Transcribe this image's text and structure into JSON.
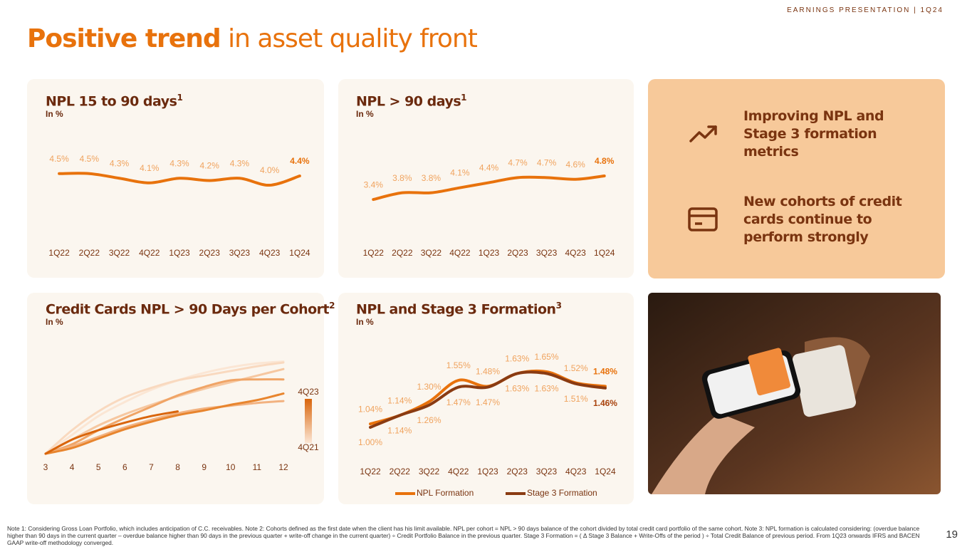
{
  "header": "EARNINGS PRESENTATION | 1Q24",
  "title": {
    "highlight": "Positive trend",
    "rest": "in asset quality front"
  },
  "chart_data": [
    {
      "type": "line",
      "title": "NPL 15 to 90 days",
      "note_ref": "1",
      "subtitle": "In %",
      "categories": [
        "1Q22",
        "2Q22",
        "3Q22",
        "4Q22",
        "1Q23",
        "2Q23",
        "3Q23",
        "4Q23",
        "1Q24"
      ],
      "values": [
        4.5,
        4.5,
        4.3,
        4.1,
        4.3,
        4.2,
        4.3,
        4.0,
        4.4
      ],
      "value_labels": [
        "4.5%",
        "4.5%",
        "4.3%",
        "4.1%",
        "4.3%",
        "4.2%",
        "4.3%",
        "4.0%",
        "4.4%"
      ],
      "color": "#e8720c",
      "ylim": [
        2,
        6
      ]
    },
    {
      "type": "line",
      "title": "NPL > 90 days",
      "note_ref": "1",
      "subtitle": "In %",
      "categories": [
        "1Q22",
        "2Q22",
        "3Q22",
        "4Q22",
        "1Q23",
        "2Q23",
        "3Q23",
        "4Q23",
        "1Q24"
      ],
      "values": [
        3.4,
        3.8,
        3.8,
        4.1,
        4.4,
        4.7,
        4.7,
        4.6,
        4.8
      ],
      "value_labels": [
        "3.4%",
        "3.8%",
        "3.8%",
        "4.1%",
        "4.4%",
        "4.7%",
        "4.7%",
        "4.6%",
        "4.8%"
      ],
      "color": "#e8720c",
      "ylim": [
        1.5,
        7
      ]
    },
    {
      "type": "line",
      "title": "Credit Cards NPL > 90 Days per Cohort",
      "note_ref": "2",
      "subtitle": "In %",
      "x": [
        3,
        4,
        5,
        6,
        7,
        8,
        9,
        10,
        11,
        12
      ],
      "xlim": [
        3,
        12
      ],
      "xticks": [
        3,
        4,
        5,
        6,
        7,
        8,
        9,
        10,
        11,
        12
      ],
      "ylim": [
        0,
        10
      ],
      "legend_labels": [
        "4Q23",
        "4Q21"
      ],
      "series": [
        {
          "color": "#fbe6d4",
          "values": [
            0,
            2,
            4,
            5.5,
            6.8,
            7.8,
            8.6,
            9.2,
            9.6,
            9.8
          ]
        },
        {
          "color": "#f9d9bf",
          "values": [
            0,
            2.5,
            4.5,
            6,
            7,
            7.8,
            8.3,
            8.8,
            9.3,
            9.7
          ]
        },
        {
          "color": "#f6c7a0",
          "values": [
            0,
            1.5,
            3,
            4.2,
            5.2,
            6.1,
            6.9,
            7.6,
            8.3,
            9
          ]
        },
        {
          "color": "#f0a466",
          "values": [
            0,
            1,
            2.5,
            3.8,
            5,
            6.2,
            7.1,
            7.8,
            7.9,
            7.9
          ]
        },
        {
          "color": "#f2b280",
          "values": [
            0,
            0.8,
            1.8,
            2.8,
            3.6,
            4.3,
            4.8,
            5.1,
            5.4,
            5.6
          ]
        },
        {
          "color": "#e8852e",
          "values": [
            0,
            0.6,
            1.6,
            2.6,
            3.4,
            4.1,
            4.6,
            5.2,
            5.7,
            6.4
          ]
        },
        {
          "color": "#d9650c",
          "values": [
            0,
            1.5,
            2.5,
            3.3,
            4,
            4.5,
            null,
            null,
            null,
            null
          ]
        }
      ]
    },
    {
      "type": "line",
      "title": "NPL and Stage 3 Formation",
      "note_ref": "3",
      "subtitle": "In %",
      "categories": [
        "1Q22",
        "2Q22",
        "3Q22",
        "4Q22",
        "1Q23",
        "2Q23",
        "3Q23",
        "4Q23",
        "1Q24"
      ],
      "ylim": [
        0.75,
        2.0
      ],
      "series": [
        {
          "name": "NPL Formation",
          "color": "#e8720c",
          "values": [
            1.04,
            1.14,
            1.3,
            1.55,
            1.48,
            1.63,
            1.65,
            1.52,
            1.48
          ],
          "value_labels": [
            "1.04%",
            "1.14%",
            "1.30%",
            "1.55%",
            "1.48%",
            "1.63%",
            "1.65%",
            "1.52%",
            "1.48%"
          ]
        },
        {
          "name": "Stage 3 Formation",
          "color": "#8a3b12",
          "values": [
            1.0,
            1.14,
            1.26,
            1.47,
            1.47,
            1.63,
            1.63,
            1.51,
            1.46
          ],
          "value_labels": [
            "1.00%",
            "1.14%",
            "1.26%",
            "1.47%",
            "1.47%",
            "1.63%",
            "1.63%",
            "1.51%",
            "1.46%"
          ]
        }
      ]
    }
  ],
  "highlights": [
    "Improving NPL and Stage 3 formation metrics",
    "New cohorts of credit cards continue to perform strongly"
  ],
  "note": "Note 1: Considering Gross Loan Portfolio, which includes anticipation of C.C. receivables.  Note 2: Cohorts defined as the first date when the client has his limit available. NPL per cohort = NPL > 90 days balance of the cohort divided by total credit card portfolio of the same cohort. Note 3: NPL formation is calculated considering: (overdue balance higher than 90 days in the current quarter – overdue balance higher than 90 days in the previous quarter + write-off change in the current quarter) ÷ Credit Portfolio Balance in the previous quarter. Stage 3 Formation = ( Δ Stage 3 Balance + Write-Offs of the period ) ÷ Total Credit Balance of previous period. From 1Q23 onwards IFRS and BACEN GAAP write-off methodology converged.",
  "page_number": "19"
}
